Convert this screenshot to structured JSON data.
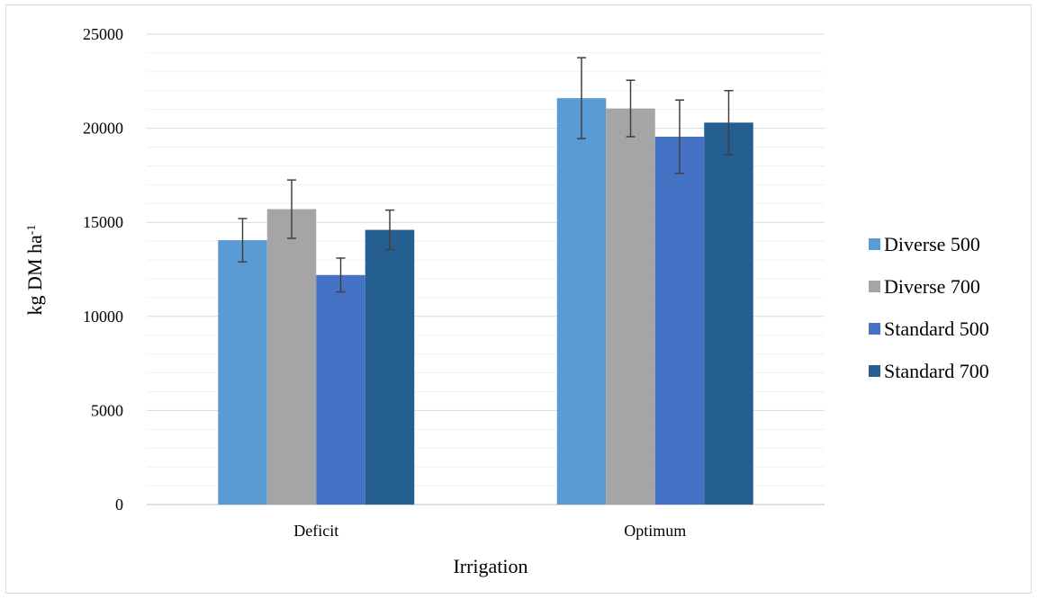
{
  "chart_data": {
    "type": "bar",
    "title": "",
    "xlabel": "Irrigation",
    "ylabel": "kg DM ha",
    "ylabel_superscript": "-1",
    "categories": [
      "Deficit",
      "Optimum"
    ],
    "ylim": [
      0,
      25000
    ],
    "y_major_ticks": [
      "0",
      "5000",
      "10000",
      "15000",
      "20000",
      "25000"
    ],
    "grid": true,
    "legend_position": "right",
    "series": [
      {
        "name": "Diverse 500",
        "color": "#5b9bd5",
        "values": [
          14050,
          21600
        ],
        "error": [
          1150,
          2150
        ]
      },
      {
        "name": "Diverse 700",
        "color": "#a5a5a5",
        "values": [
          15700,
          21050
        ],
        "error": [
          1550,
          1500
        ]
      },
      {
        "name": "Standard 500",
        "color": "#4472c4",
        "values": [
          12200,
          19550
        ],
        "error": [
          900,
          1950
        ]
      },
      {
        "name": "Standard 700",
        "color": "#255e91",
        "values": [
          14600,
          20300
        ],
        "error": [
          1050,
          1700
        ]
      }
    ]
  }
}
